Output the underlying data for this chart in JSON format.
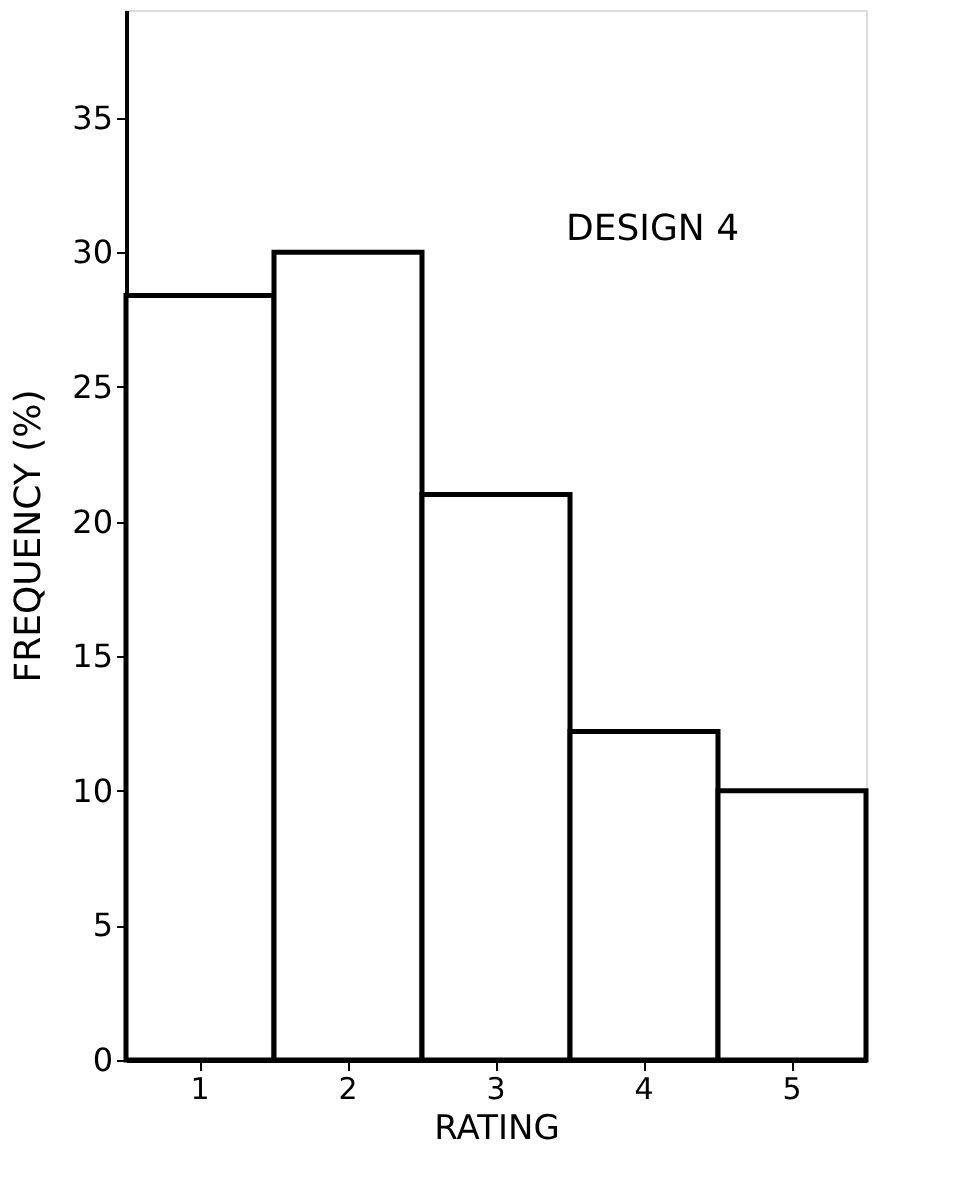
{
  "chart_data": {
    "type": "bar",
    "xlabel": "RATING",
    "ylabel": "FREQUENCY  (%)",
    "categories": [
      "1",
      "2",
      "3",
      "4",
      "5"
    ],
    "values": [
      28.4,
      30,
      21,
      12.2,
      10
    ],
    "color": "#ffffff",
    "ylim": [
      0,
      39
    ],
    "yticks": [
      0,
      5,
      10,
      15,
      20,
      25,
      30,
      35
    ],
    "annotations": [
      "DESIGN 4"
    ],
    "grid": false
  }
}
